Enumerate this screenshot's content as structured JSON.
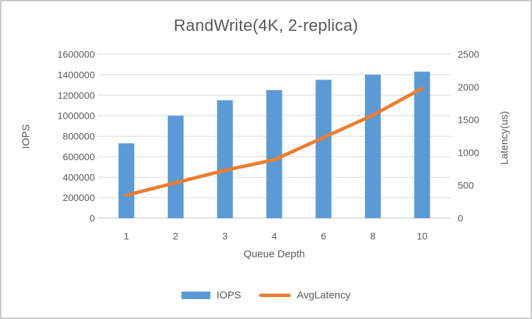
{
  "colors": {
    "text": "#595959",
    "grid": "#d9d9d9",
    "axis_line": "#bfbfbf",
    "border": "#c9c9c9",
    "background": "#ffffff",
    "bar": "#5b9bd5",
    "line": "#ed7d31"
  },
  "chart_data": {
    "type": "combo-bar-line",
    "title": "RandWrite(4K, 2-replica)",
    "categories": [
      "1",
      "2",
      "3",
      "4",
      "6",
      "8",
      "10"
    ],
    "xlabel": "Queue Depth",
    "grid": true,
    "legend_position": "bottom",
    "left_axis": {
      "label": "IOPS",
      "min": 0,
      "max": 1600000,
      "step": 200000,
      "tick_labels": [
        "0",
        "200000",
        "400000",
        "600000",
        "800000",
        "1000000",
        "1200000",
        "1400000",
        "1600000"
      ]
    },
    "right_axis": {
      "label": "Latency(us)",
      "min": 0,
      "max": 2500,
      "step": 500,
      "tick_labels": [
        "0",
        "500",
        "1000",
        "1500",
        "2000",
        "2500"
      ]
    },
    "series": [
      {
        "name": "IOPS",
        "type": "bar",
        "axis": "left",
        "color": "#5b9bd5",
        "values": [
          730000,
          1000000,
          1150000,
          1250000,
          1350000,
          1400000,
          1430000
        ]
      },
      {
        "name": "AvgLatency",
        "type": "line",
        "axis": "right",
        "color": "#ed7d31",
        "values": [
          350,
          540,
          730,
          890,
          1230,
          1570,
          1980
        ]
      }
    ]
  }
}
